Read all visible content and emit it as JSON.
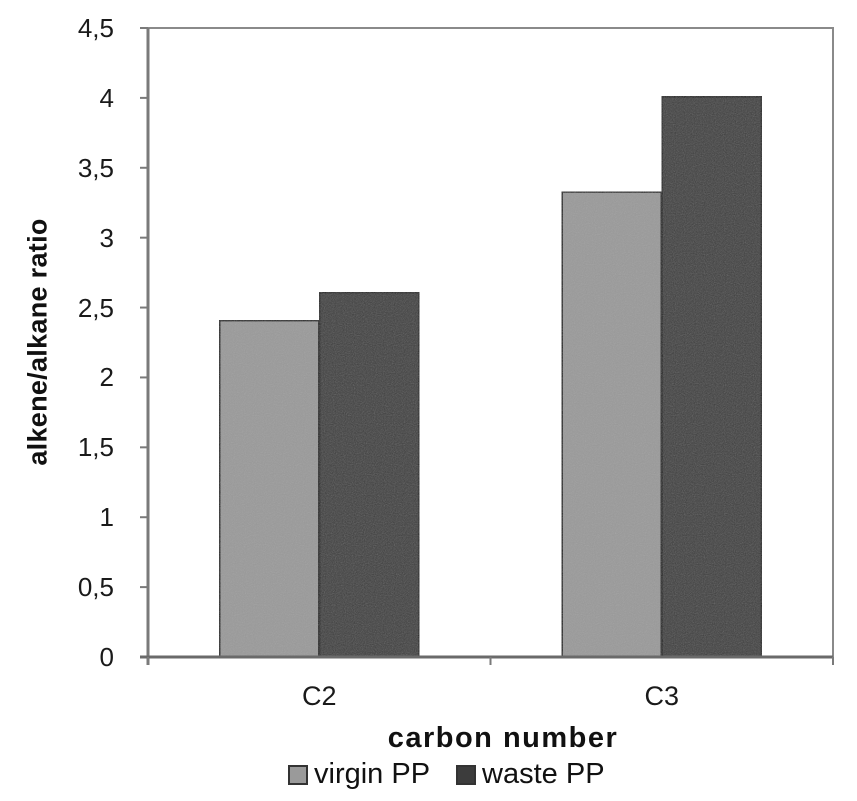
{
  "chart_data": {
    "type": "bar",
    "title": "",
    "xlabel": "carbon number",
    "ylabel": "alkene/alkane ratio",
    "categories": [
      "C2",
      "C3"
    ],
    "series": [
      {
        "name": "virgin PP",
        "color": "#9a9a9a",
        "values": [
          2.41,
          3.33
        ]
      },
      {
        "name": "waste PP",
        "color": "#3c3c3c",
        "values": [
          2.61,
          4.01
        ]
      }
    ],
    "ylim": [
      0,
      4.5
    ],
    "yticks": [
      0,
      0.5,
      1,
      1.5,
      2,
      2.5,
      3,
      3.5,
      4,
      4.5
    ],
    "ytick_labels": [
      "0",
      "0,5",
      "1",
      "1,5",
      "2",
      "2,5",
      "3",
      "3,5",
      "4",
      "4,5"
    ],
    "grid": false,
    "legend_position": "bottom"
  },
  "axes": {
    "xlabel": "carbon number",
    "ylabel": "alkene/alkane ratio",
    "xtick_labels": [
      "C2",
      "C3"
    ]
  },
  "legend": {
    "items": [
      {
        "label": "virgin PP",
        "color": "#9a9a9a"
      },
      {
        "label": "waste PP",
        "color": "#3c3c3c"
      }
    ]
  }
}
